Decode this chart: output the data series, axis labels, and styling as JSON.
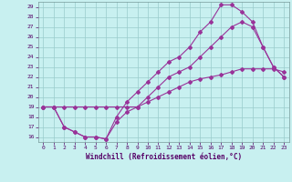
{
  "xlabel": "Windchill (Refroidissement éolien,°C)",
  "bg_color": "#c8f0f0",
  "line_color": "#993399",
  "grid_color": "#99cccc",
  "xlim": [
    -0.5,
    23.5
  ],
  "ylim": [
    15.5,
    29.5
  ],
  "xticks": [
    0,
    1,
    2,
    3,
    4,
    5,
    6,
    7,
    8,
    9,
    10,
    11,
    12,
    13,
    14,
    15,
    16,
    17,
    18,
    19,
    20,
    21,
    22,
    23
  ],
  "yticks": [
    16,
    17,
    18,
    19,
    20,
    21,
    22,
    23,
    24,
    25,
    26,
    27,
    28,
    29
  ],
  "line1_x": [
    0,
    1,
    2,
    3,
    4,
    5,
    6,
    7,
    8,
    9,
    10,
    11,
    12,
    13,
    14,
    15,
    16,
    17,
    18,
    19,
    20,
    21,
    22,
    23
  ],
  "line1_y": [
    19,
    19,
    17,
    16.5,
    16,
    16,
    15.8,
    17.5,
    18.5,
    19,
    20,
    21,
    22,
    22.5,
    23,
    24,
    25,
    26,
    27,
    27.5,
    27,
    25,
    23,
    22
  ],
  "line2_x": [
    0,
    1,
    2,
    3,
    4,
    5,
    6,
    7,
    8,
    9,
    10,
    11,
    12,
    13,
    14,
    15,
    16,
    17,
    18,
    19,
    20,
    21,
    22,
    23
  ],
  "line2_y": [
    19,
    19,
    17,
    16.5,
    16,
    16,
    15.8,
    18,
    19.5,
    20.5,
    21.5,
    22.5,
    23.5,
    24,
    25,
    26.5,
    27.5,
    29.2,
    29.2,
    28.5,
    27.5,
    25,
    23,
    22
  ],
  "line3_x": [
    0,
    1,
    2,
    3,
    4,
    5,
    6,
    7,
    8,
    9,
    10,
    11,
    12,
    13,
    14,
    15,
    16,
    17,
    18,
    19,
    20,
    21,
    22,
    23
  ],
  "line3_y": [
    19,
    19,
    19,
    19,
    19,
    19,
    19,
    19,
    19,
    19,
    19.5,
    20,
    20.5,
    21,
    21.5,
    21.8,
    22,
    22.2,
    22.5,
    22.8,
    22.8,
    22.8,
    22.8,
    22.5
  ],
  "xlabel_fontsize": 5.5,
  "tick_fontsize": 4.5,
  "tick_color": "#550066",
  "xlabel_color": "#550066"
}
